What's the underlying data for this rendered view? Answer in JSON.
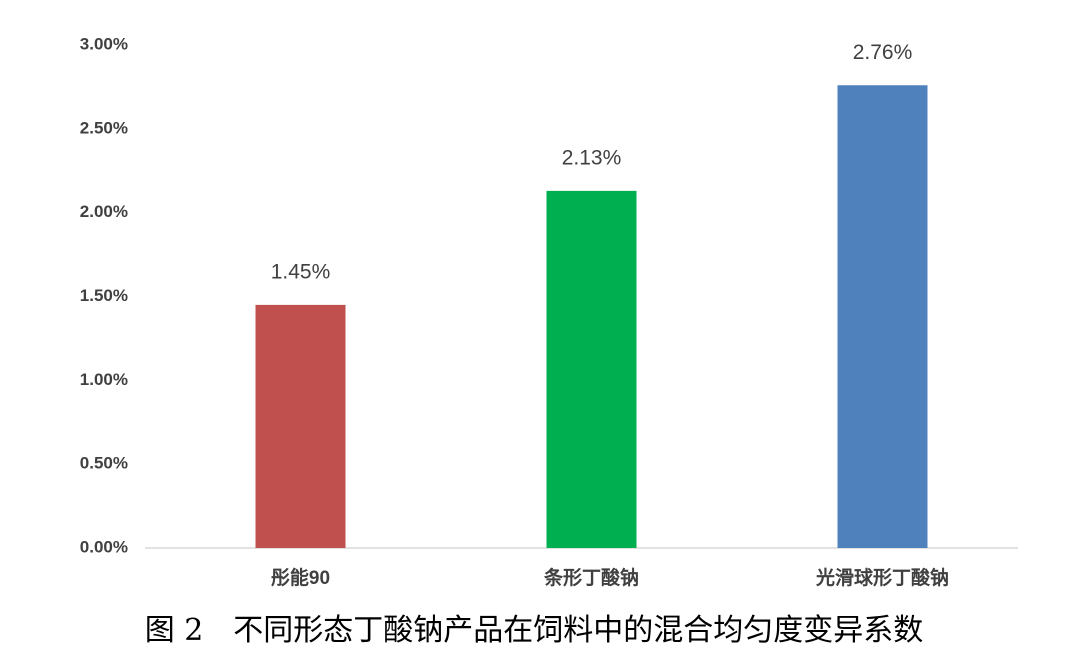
{
  "chart_data": {
    "type": "bar",
    "title": "图 2　不同形态丁酸钠产品在饲料中的混合均匀度变异系数",
    "categories": [
      "彤能90",
      "条形丁酸钠",
      "光滑球形丁酸钠"
    ],
    "values": [
      1.45,
      2.13,
      2.76
    ],
    "value_labels": [
      "1.45%",
      "2.13%",
      "2.76%"
    ],
    "colors": [
      "#c0504d",
      "#00b050",
      "#4f81bd"
    ],
    "ylim": [
      0,
      3
    ],
    "yticks": [
      {
        "value": 0,
        "label": "0.00%"
      },
      {
        "value": 0.5,
        "label": "0.50%"
      },
      {
        "value": 1,
        "label": "1.00%"
      },
      {
        "value": 1.5,
        "label": "1.50%"
      },
      {
        "value": 2,
        "label": "2.00%"
      },
      {
        "value": 2.5,
        "label": "2.50%"
      },
      {
        "value": 3,
        "label": "3.00%"
      }
    ],
    "grid": false
  }
}
